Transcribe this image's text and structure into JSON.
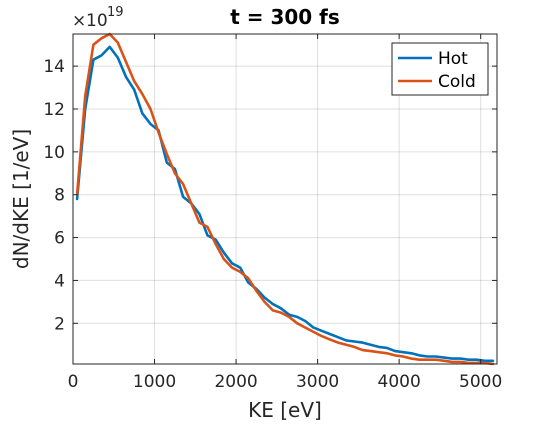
{
  "chart_data": {
    "type": "line",
    "title": "t = 300 fs",
    "xlabel": "KE [eV]",
    "ylabel": "dN/dKE [1/eV]",
    "y_multiplier_base": "10",
    "y_multiplier_exponent": "19",
    "xlim": [
      0,
      5200
    ],
    "ylim": [
      0.1,
      15.5
    ],
    "xticks": [
      0,
      1000,
      2000,
      3000,
      4000,
      5000
    ],
    "yticks": [
      2,
      4,
      6,
      8,
      10,
      12,
      14
    ],
    "grid": true,
    "legend_position": "top-right",
    "series": [
      {
        "name": "Hot",
        "color": "#0072BD",
        "x": [
          50,
          150,
          250,
          350,
          450,
          550,
          650,
          750,
          850,
          950,
          1050,
          1150,
          1250,
          1350,
          1450,
          1550,
          1650,
          1750,
          1850,
          1950,
          2050,
          2150,
          2250,
          2350,
          2450,
          2550,
          2650,
          2750,
          2850,
          2950,
          3050,
          3150,
          3250,
          3350,
          3450,
          3550,
          3650,
          3750,
          3850,
          3950,
          4050,
          4150,
          4250,
          4350,
          4450,
          4550,
          4650,
          4750,
          4850,
          4950,
          5050,
          5150
        ],
        "y": [
          7.8,
          12.0,
          14.3,
          14.5,
          14.9,
          14.4,
          13.5,
          12.9,
          11.8,
          11.3,
          11.0,
          9.5,
          9.2,
          7.9,
          7.6,
          7.1,
          6.1,
          5.9,
          5.3,
          4.8,
          4.6,
          3.9,
          3.6,
          3.2,
          2.9,
          2.7,
          2.4,
          2.3,
          2.1,
          1.8,
          1.65,
          1.5,
          1.35,
          1.2,
          1.15,
          1.1,
          1.0,
          0.9,
          0.85,
          0.7,
          0.65,
          0.6,
          0.5,
          0.45,
          0.45,
          0.4,
          0.35,
          0.35,
          0.3,
          0.3,
          0.25,
          0.25
        ]
      },
      {
        "name": "Cold",
        "color": "#D95319",
        "x": [
          50,
          150,
          250,
          350,
          450,
          550,
          650,
          750,
          850,
          950,
          1050,
          1150,
          1250,
          1350,
          1450,
          1550,
          1650,
          1750,
          1850,
          1950,
          2050,
          2150,
          2250,
          2350,
          2450,
          2550,
          2650,
          2750,
          2850,
          2950,
          3050,
          3150,
          3250,
          3350,
          3450,
          3550,
          3650,
          3750,
          3850,
          3950,
          4050,
          4150,
          4250,
          4350,
          4450,
          4550,
          4650,
          4750,
          4850,
          4950,
          5050,
          5150
        ],
        "y": [
          8.0,
          12.6,
          15.0,
          15.3,
          15.5,
          15.1,
          14.2,
          13.3,
          12.7,
          12.0,
          10.9,
          9.9,
          9.0,
          8.5,
          7.6,
          6.7,
          6.5,
          5.7,
          5.0,
          4.6,
          4.4,
          4.1,
          3.5,
          3.0,
          2.6,
          2.5,
          2.3,
          2.0,
          1.8,
          1.6,
          1.4,
          1.25,
          1.1,
          1.0,
          0.9,
          0.75,
          0.7,
          0.65,
          0.6,
          0.5,
          0.45,
          0.35,
          0.3,
          0.3,
          0.3,
          0.25,
          0.2,
          0.2,
          0.15,
          0.15,
          0.15,
          0.1
        ]
      }
    ]
  }
}
